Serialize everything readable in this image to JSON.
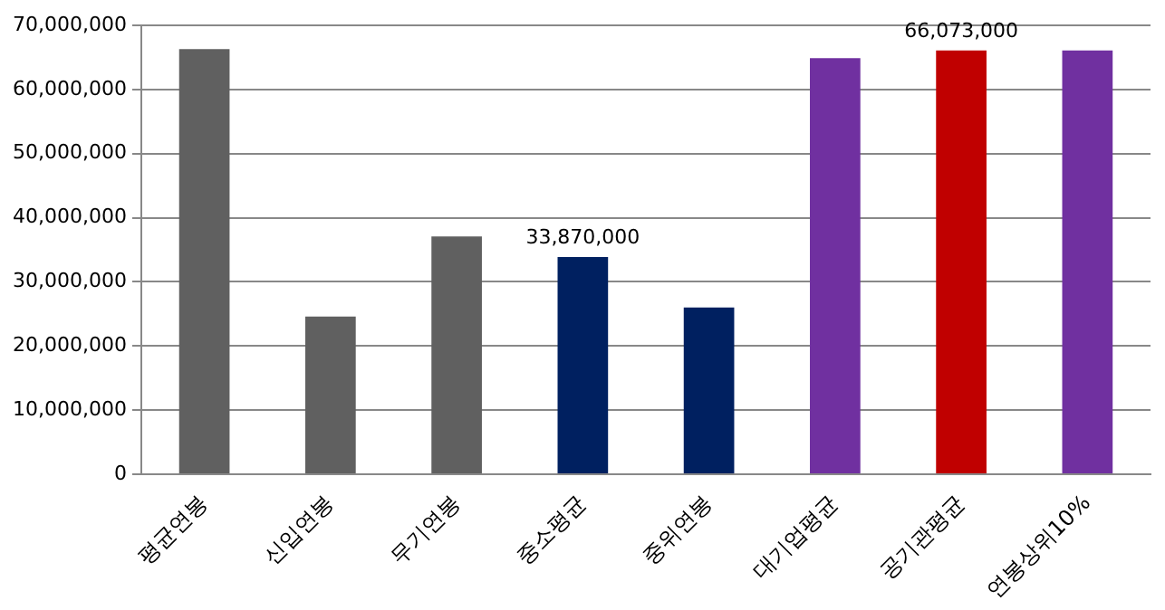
{
  "chart_data": {
    "type": "bar",
    "categories": [
      "평균연봉",
      "신입연봉",
      "무기연봉",
      "중소평균",
      "중위연봉",
      "대기업평균",
      "공기관평균",
      "연봉상위10%"
    ],
    "values": [
      66300000,
      24600000,
      37100000,
      33870000,
      26000000,
      64900000,
      66073000,
      66100000
    ],
    "colors": [
      "#606060",
      "#606060",
      "#606060",
      "#002060",
      "#002060",
      "#7030a0",
      "#c00000",
      "#7030a0"
    ],
    "value_labels": [
      null,
      null,
      null,
      "33,870,000",
      null,
      null,
      "66,073,000",
      null
    ],
    "ylim": [
      0,
      70000000
    ],
    "yticks": [
      0,
      {
        "value": 10000000,
        "label": "10,000,000"
      },
      {
        "value": 20000000,
        "label": "20,000,000"
      },
      {
        "value": 30000000,
        "label": "30,000,000"
      },
      {
        "value": 40000000,
        "label": "40,000,000"
      },
      {
        "value": 50000000,
        "label": "50,000,000"
      },
      {
        "value": 60000000,
        "label": "60,000,000"
      },
      {
        "value": 70000000,
        "label": "70,000,000"
      }
    ],
    "grid": "y",
    "legend": false
  }
}
